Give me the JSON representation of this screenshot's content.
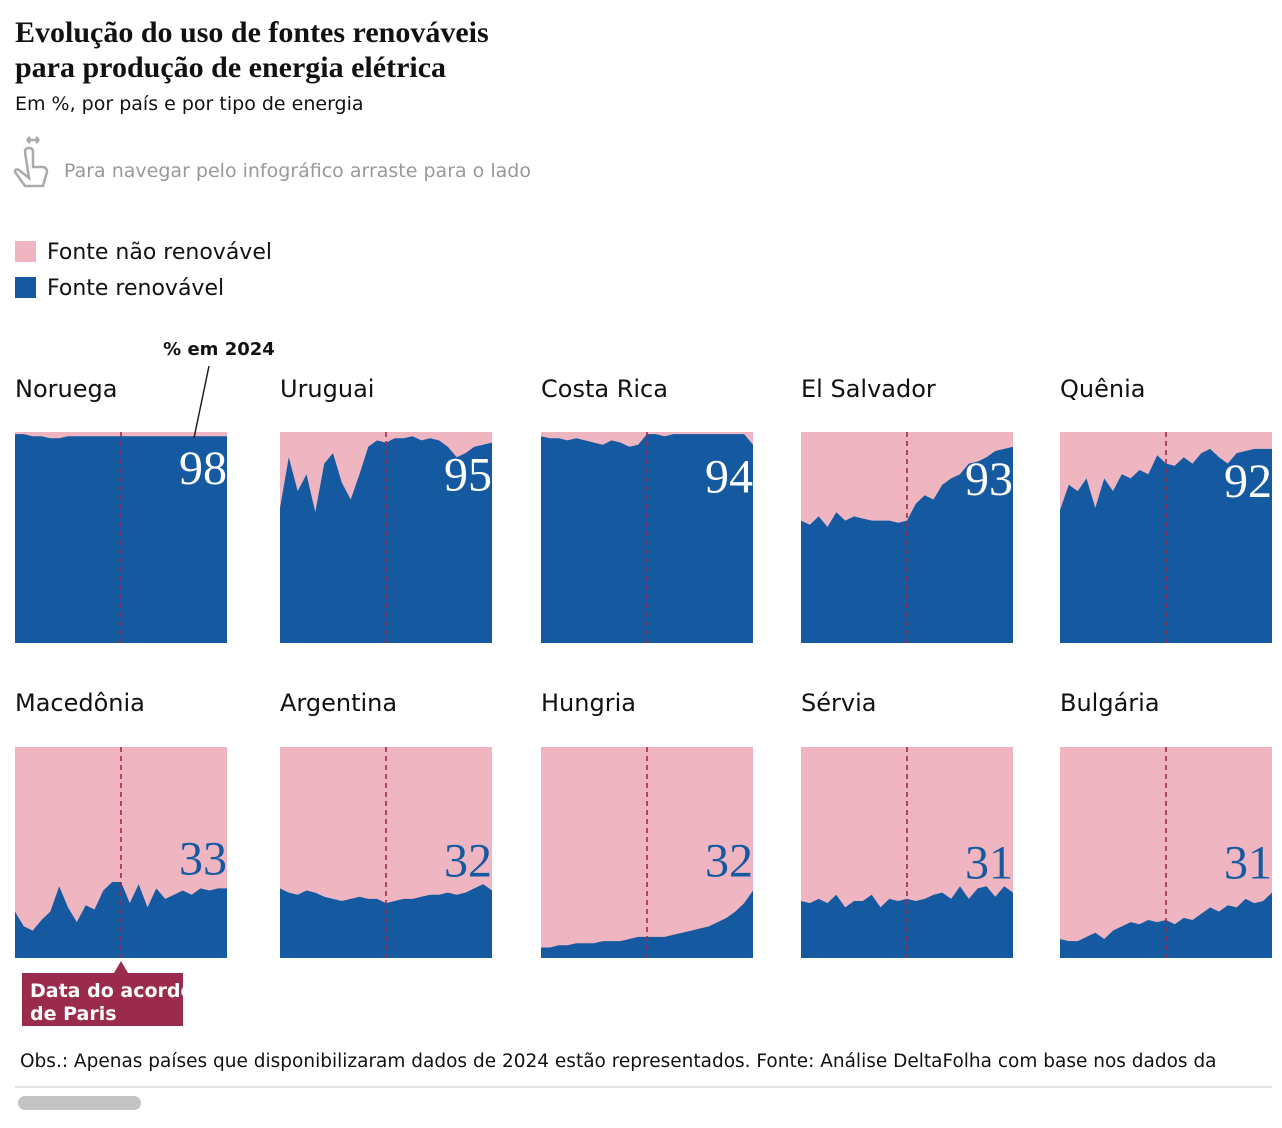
{
  "chart_data": {
    "type": "area",
    "title": [
      "Evolução do uso de fontes renováveis",
      "para produção de energia elétrica"
    ],
    "subtitle": "Em %, por país e por tipo de energia",
    "hint": "Para navegar pelo infográfico arraste para o lado",
    "series": [
      {
        "name": "Fonte não renovável",
        "color": "#efb6c1"
      },
      {
        "name": "Fonte renovável",
        "color": "#1559a1"
      }
    ],
    "ylim": [
      0,
      100
    ],
    "annotations": {
      "last_value": "% em 2024",
      "paris": [
        "Data do acordo",
        "de Paris"
      ]
    },
    "panels": [
      {
        "title": "Noruega",
        "values": [
          99,
          99,
          98,
          98,
          97,
          97,
          98,
          98,
          98,
          98,
          98,
          98,
          98,
          98,
          98,
          98,
          98,
          98,
          98,
          98,
          98,
          98,
          98,
          98,
          98
        ]
      },
      {
        "title": "Uruguai",
        "values": [
          64,
          88,
          72,
          80,
          62,
          85,
          90,
          76,
          68,
          80,
          93,
          96,
          95,
          97,
          97,
          98,
          96,
          97,
          96,
          93,
          88,
          90,
          93,
          94,
          95
        ]
      },
      {
        "title": "Costa Rica",
        "values": [
          98,
          97,
          97,
          96,
          97,
          96,
          95,
          94,
          96,
          95,
          93,
          94,
          99,
          99,
          98,
          99,
          99,
          99,
          99,
          99,
          99,
          99,
          99,
          99,
          94
        ]
      },
      {
        "title": "El Salvador",
        "values": [
          58,
          56,
          60,
          55,
          62,
          58,
          60,
          59,
          58,
          58,
          58,
          57,
          58,
          66,
          70,
          68,
          75,
          78,
          80,
          85,
          86,
          88,
          91,
          92,
          93
        ]
      },
      {
        "title": "Quênia",
        "values": [
          63,
          75,
          72,
          78,
          64,
          78,
          72,
          80,
          78,
          82,
          80,
          89,
          85,
          84,
          88,
          85,
          90,
          92,
          88,
          85,
          90,
          91,
          92,
          92,
          92
        ]
      },
      {
        "title": "Macedônia",
        "values": [
          22,
          15,
          13,
          18,
          22,
          34,
          24,
          17,
          25,
          23,
          32,
          36,
          36,
          26,
          35,
          24,
          33,
          28,
          30,
          32,
          30,
          33,
          32,
          33,
          33
        ]
      },
      {
        "title": "Argentina",
        "values": [
          33,
          31,
          30,
          32,
          31,
          29,
          28,
          27,
          28,
          29,
          28,
          28,
          26,
          27,
          28,
          28,
          29,
          30,
          30,
          31,
          30,
          31,
          33,
          35,
          32
        ]
      },
      {
        "title": "Hungria",
        "values": [
          5,
          5,
          6,
          6,
          7,
          7,
          7,
          8,
          8,
          8,
          9,
          10,
          10,
          10,
          10,
          11,
          12,
          13,
          14,
          15,
          17,
          19,
          22,
          26,
          32
        ]
      },
      {
        "title": "Sérvia",
        "values": [
          27,
          26,
          28,
          26,
          30,
          24,
          27,
          27,
          30,
          24,
          28,
          27,
          28,
          27,
          28,
          30,
          31,
          28,
          34,
          28,
          33,
          34,
          29,
          34,
          31
        ]
      },
      {
        "title": "Bulgária",
        "values": [
          9,
          8,
          8,
          10,
          12,
          9,
          13,
          15,
          17,
          16,
          18,
          17,
          18,
          16,
          19,
          18,
          21,
          24,
          22,
          25,
          24,
          28,
          26,
          27,
          31
        ]
      }
    ],
    "footnote": "Obs.: Apenas países que disponibilizaram dados de 2024 estão representados. Fonte: Análise DeltaFolha com base nos dados da"
  }
}
